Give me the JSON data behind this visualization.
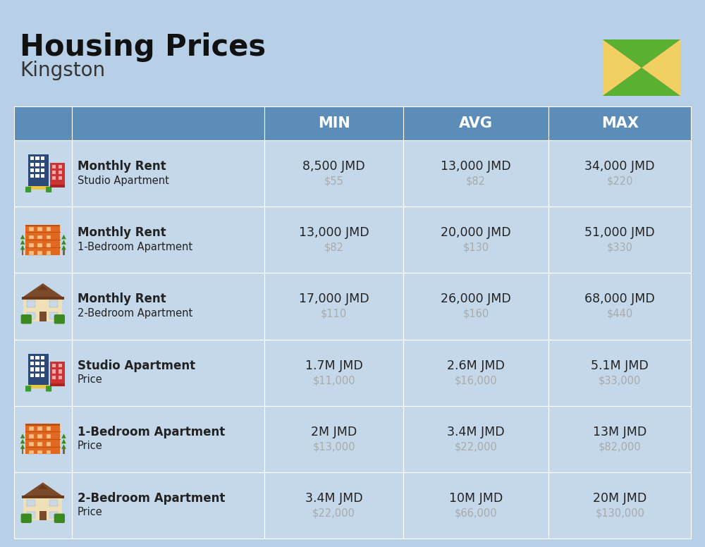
{
  "title": "Housing Prices",
  "subtitle": "Kingston",
  "bg_color": "#b8cfe8",
  "header_color": "#5b8db8",
  "row_bg": "#c5d8ea",
  "cell_sep_color": "#a8c0d8",
  "title_color": "#111111",
  "subtitle_color": "#333333",
  "main_text_color": "#222222",
  "sub_text_color": "#aaaaaa",
  "col_headers": [
    "MIN",
    "AVG",
    "MAX"
  ],
  "flag_black": "#555566",
  "flag_gold": "#f0d060",
  "flag_green": "#5ab030",
  "rows": [
    {
      "bold_label": "Monthly Rent",
      "sub_label": "Studio Apartment",
      "icon_type": "city_blue_red",
      "min_main": "8,500 JMD",
      "min_sub": "$55",
      "avg_main": "13,000 JMD",
      "avg_sub": "$82",
      "max_main": "34,000 JMD",
      "max_sub": "$220"
    },
    {
      "bold_label": "Monthly Rent",
      "sub_label": "1-Bedroom Apartment",
      "icon_type": "apartment_orange",
      "min_main": "13,000 JMD",
      "min_sub": "$82",
      "avg_main": "20,000 JMD",
      "avg_sub": "$130",
      "max_main": "51,000 JMD",
      "max_sub": "$330"
    },
    {
      "bold_label": "Monthly Rent",
      "sub_label": "2-Bedroom Apartment",
      "icon_type": "house_beige",
      "min_main": "17,000 JMD",
      "min_sub": "$110",
      "avg_main": "26,000 JMD",
      "avg_sub": "$160",
      "max_main": "68,000 JMD",
      "max_sub": "$440"
    },
    {
      "bold_label": "Studio Apartment",
      "sub_label": "Price",
      "icon_type": "city_blue_red",
      "min_main": "1.7M JMD",
      "min_sub": "$11,000",
      "avg_main": "2.6M JMD",
      "avg_sub": "$16,000",
      "max_main": "5.1M JMD",
      "max_sub": "$33,000"
    },
    {
      "bold_label": "1-Bedroom Apartment",
      "sub_label": "Price",
      "icon_type": "apartment_orange",
      "min_main": "2M JMD",
      "min_sub": "$13,000",
      "avg_main": "3.4M JMD",
      "avg_sub": "$22,000",
      "max_main": "13M JMD",
      "max_sub": "$82,000"
    },
    {
      "bold_label": "2-Bedroom Apartment",
      "sub_label": "Price",
      "icon_type": "house_beige",
      "min_main": "3.4M JMD",
      "min_sub": "$22,000",
      "avg_main": "10M JMD",
      "avg_sub": "$66,000",
      "max_main": "20M JMD",
      "max_sub": "$130,000"
    }
  ]
}
